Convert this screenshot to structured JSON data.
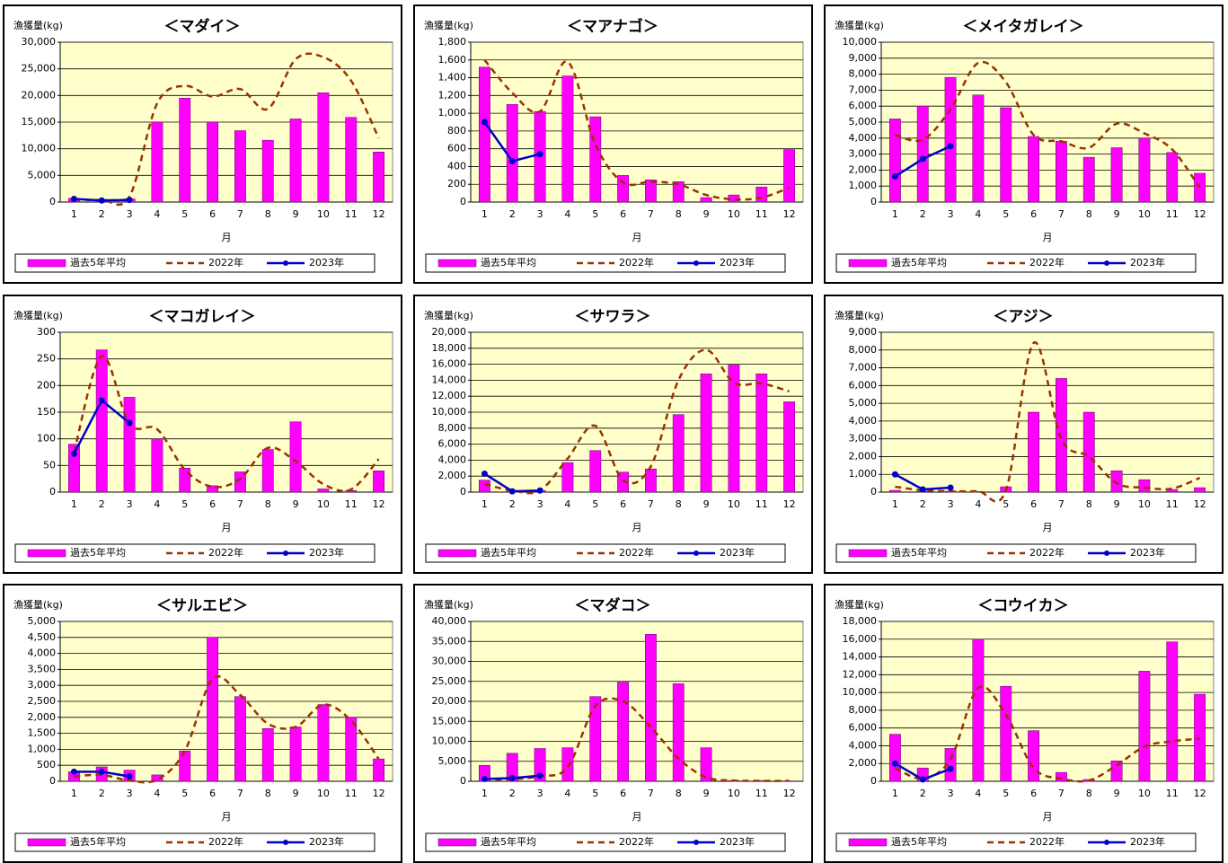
{
  "chart_data": [
    {
      "type": "bar",
      "title": "＜マダイ＞",
      "ylabel": "漁獲量(kg)",
      "xlabel": "月",
      "categories": [
        "1",
        "2",
        "3",
        "4",
        "5",
        "6",
        "7",
        "8",
        "9",
        "10",
        "11",
        "12"
      ],
      "series": [
        {
          "name": "過去5年平均",
          "type": "bar",
          "color": "#ff00ff",
          "values": [
            700,
            500,
            600,
            15000,
            19500,
            15000,
            13400,
            11600,
            15600,
            20500,
            15900,
            9400
          ]
        },
        {
          "name": "2022年",
          "type": "line",
          "linestyle": "dashed",
          "color": "#993300",
          "values": [
            500,
            400,
            1000,
            18500,
            21800,
            19800,
            21200,
            17500,
            26800,
            27200,
            22800,
            12000
          ]
        },
        {
          "name": "2023年",
          "type": "line",
          "linestyle": "solid",
          "marker": "circle",
          "color": "#0000cc",
          "values": [
            600,
            300,
            400,
            null,
            null,
            null,
            null,
            null,
            null,
            null,
            null,
            null
          ]
        }
      ],
      "ylim": [
        0,
        30000
      ],
      "yticks": [
        0,
        {
          "value": 5000,
          "label": "5,000"
        },
        {
          "value": 10000,
          "label": "10,000"
        },
        {
          "value": 15000,
          "label": "15,000"
        },
        {
          "value": 20000,
          "label": "20,000"
        },
        {
          "value": 25000,
          "label": "25,000"
        },
        {
          "value": 30000,
          "label": "30,000"
        }
      ],
      "grid": true
    },
    {
      "type": "bar",
      "title": "＜マアナゴ＞",
      "ylabel": "漁獲量(kg)",
      "xlabel": "月",
      "categories": [
        "1",
        "2",
        "3",
        "4",
        "5",
        "6",
        "7",
        "8",
        "9",
        "10",
        "11",
        "12"
      ],
      "series": [
        {
          "name": "過去5年平均",
          "type": "bar",
          "color": "#ff00ff",
          "values": [
            1520,
            1100,
            1020,
            1420,
            960,
            300,
            250,
            230,
            50,
            80,
            170,
            590
          ]
        },
        {
          "name": "2022年",
          "type": "line",
          "linestyle": "dashed",
          "color": "#993300",
          "values": [
            1600,
            1230,
            1020,
            1580,
            650,
            220,
            230,
            200,
            80,
            30,
            50,
            160
          ]
        },
        {
          "name": "2023年",
          "type": "line",
          "linestyle": "solid",
          "marker": "circle",
          "color": "#0000cc",
          "values": [
            900,
            460,
            540,
            null,
            null,
            null,
            null,
            null,
            null,
            null,
            null,
            null
          ]
        }
      ],
      "ylim": [
        0,
        1800
      ],
      "yticks": [
        0,
        200,
        400,
        600,
        800,
        {
          "value": 1000,
          "label": "1,000"
        },
        {
          "value": 1200,
          "label": "1,200"
        },
        {
          "value": 1400,
          "label": "1,400"
        },
        {
          "value": 1600,
          "label": "1,600"
        },
        {
          "value": 1800,
          "label": "1,800"
        }
      ],
      "grid": true
    },
    {
      "type": "bar",
      "title": "＜メイタガレイ＞",
      "ylabel": "漁獲量(kg)",
      "xlabel": "月",
      "categories": [
        "1",
        "2",
        "3",
        "4",
        "5",
        "6",
        "7",
        "8",
        "9",
        "10",
        "11",
        "12"
      ],
      "series": [
        {
          "name": "過去5年平均",
          "type": "bar",
          "color": "#ff00ff",
          "values": [
            5200,
            6000,
            7800,
            6700,
            5900,
            4100,
            3800,
            2800,
            3400,
            4000,
            3100,
            1800
          ]
        },
        {
          "name": "2022年",
          "type": "line",
          "linestyle": "dashed",
          "color": "#993300",
          "values": [
            4200,
            3900,
            5800,
            8700,
            7500,
            4200,
            3800,
            3400,
            4900,
            4300,
            3300,
            900
          ]
        },
        {
          "name": "2023年",
          "type": "line",
          "linestyle": "solid",
          "marker": "circle",
          "color": "#0000cc",
          "values": [
            1600,
            2700,
            3500,
            null,
            null,
            null,
            null,
            null,
            null,
            null,
            null,
            null
          ]
        }
      ],
      "ylim": [
        0,
        10000
      ],
      "yticks": [
        0,
        {
          "value": 1000,
          "label": "1,000"
        },
        {
          "value": 2000,
          "label": "2,000"
        },
        {
          "value": 3000,
          "label": "3,000"
        },
        {
          "value": 4000,
          "label": "4,000"
        },
        {
          "value": 5000,
          "label": "5,000"
        },
        {
          "value": 6000,
          "label": "6,000"
        },
        {
          "value": 7000,
          "label": "7,000"
        },
        {
          "value": 8000,
          "label": "8,000"
        },
        {
          "value": 9000,
          "label": "9,000"
        },
        {
          "value": 10000,
          "label": "10,000"
        }
      ],
      "grid": true
    },
    {
      "type": "bar",
      "title": "＜マコガレイ＞",
      "ylabel": "漁獲量(kg)",
      "xlabel": "月",
      "categories": [
        "1",
        "2",
        "3",
        "4",
        "5",
        "6",
        "7",
        "8",
        "9",
        "10",
        "11",
        "12"
      ],
      "series": [
        {
          "name": "過去5年平均",
          "type": "bar",
          "color": "#ff00ff",
          "values": [
            90,
            267,
            178,
            100,
            45,
            12,
            38,
            80,
            132,
            6,
            3,
            40
          ]
        },
        {
          "name": "2022年",
          "type": "line",
          "linestyle": "dashed",
          "color": "#993300",
          "values": [
            75,
            255,
            128,
            118,
            42,
            10,
            25,
            83,
            58,
            15,
            5,
            62
          ]
        },
        {
          "name": "2023年",
          "type": "line",
          "linestyle": "solid",
          "marker": "circle",
          "color": "#0000cc",
          "values": [
            72,
            172,
            130,
            null,
            null,
            null,
            null,
            null,
            null,
            null,
            null,
            null
          ]
        }
      ],
      "ylim": [
        0,
        300
      ],
      "yticks": [
        0,
        50,
        100,
        150,
        200,
        250,
        300
      ],
      "grid": true
    },
    {
      "type": "bar",
      "title": "＜サワラ＞",
      "ylabel": "漁獲量(kg)",
      "xlabel": "月",
      "categories": [
        "1",
        "2",
        "3",
        "4",
        "5",
        "6",
        "7",
        "8",
        "9",
        "10",
        "11",
        "12"
      ],
      "series": [
        {
          "name": "過去5年平均",
          "type": "bar",
          "color": "#ff00ff",
          "values": [
            1500,
            200,
            200,
            3700,
            5200,
            2500,
            2900,
            9700,
            14800,
            15900,
            14800,
            11300
          ]
        },
        {
          "name": "2022年",
          "type": "line",
          "linestyle": "dashed",
          "color": "#993300",
          "values": [
            1000,
            200,
            200,
            4200,
            8300,
            1500,
            3200,
            14000,
            17800,
            13700,
            13600,
            12600
          ]
        },
        {
          "name": "2023年",
          "type": "line",
          "linestyle": "solid",
          "marker": "circle",
          "color": "#0000cc",
          "values": [
            2300,
            100,
            200,
            null,
            null,
            null,
            null,
            null,
            null,
            null,
            null,
            null
          ]
        }
      ],
      "ylim": [
        0,
        20000
      ],
      "yticks": [
        0,
        {
          "value": 2000,
          "label": "2,000"
        },
        {
          "value": 4000,
          "label": "4,000"
        },
        {
          "value": 6000,
          "label": "6,000"
        },
        {
          "value": 8000,
          "label": "8,000"
        },
        {
          "value": 10000,
          "label": "10,000"
        },
        {
          "value": 12000,
          "label": "12,000"
        },
        {
          "value": 14000,
          "label": "14,000"
        },
        {
          "value": 16000,
          "label": "16,000"
        },
        {
          "value": 18000,
          "label": "18,000"
        },
        {
          "value": 20000,
          "label": "20,000"
        }
      ],
      "grid": true
    },
    {
      "type": "bar",
      "title": "＜アジ＞",
      "ylabel": "漁獲量(kg)",
      "xlabel": "月",
      "categories": [
        "1",
        "2",
        "3",
        "4",
        "5",
        "6",
        "7",
        "8",
        "9",
        "10",
        "11",
        "12"
      ],
      "series": [
        {
          "name": "過去5年平均",
          "type": "bar",
          "color": "#ff00ff",
          "values": [
            100,
            50,
            50,
            30,
            300,
            4500,
            6400,
            4500,
            1200,
            700,
            150,
            250
          ]
        },
        {
          "name": "2022年",
          "type": "line",
          "linestyle": "dashed",
          "color": "#993300",
          "values": [
            300,
            100,
            50,
            50,
            100,
            8400,
            3000,
            2000,
            500,
            250,
            200,
            800
          ]
        },
        {
          "name": "2023年",
          "type": "line",
          "linestyle": "solid",
          "marker": "circle",
          "color": "#0000cc",
          "values": [
            1000,
            150,
            250,
            null,
            null,
            null,
            null,
            null,
            null,
            null,
            null,
            null
          ]
        }
      ],
      "ylim": [
        0,
        9000
      ],
      "yticks": [
        0,
        {
          "value": 1000,
          "label": "1,000"
        },
        {
          "value": 2000,
          "label": "2,000"
        },
        {
          "value": 3000,
          "label": "3,000"
        },
        {
          "value": 4000,
          "label": "4,000"
        },
        {
          "value": 5000,
          "label": "5,000"
        },
        {
          "value": 6000,
          "label": "6,000"
        },
        {
          "value": 7000,
          "label": "7,000"
        },
        {
          "value": 8000,
          "label": "8,000"
        },
        {
          "value": 9000,
          "label": "9,000"
        }
      ],
      "grid": true
    },
    {
      "type": "bar",
      "title": "＜サルエビ＞",
      "ylabel": "漁獲量(kg)",
      "xlabel": "月",
      "categories": [
        "1",
        "2",
        "3",
        "4",
        "5",
        "6",
        "7",
        "8",
        "9",
        "10",
        "11",
        "12"
      ],
      "series": [
        {
          "name": "過去5年平均",
          "type": "bar",
          "color": "#ff00ff",
          "values": [
            300,
            450,
            350,
            200,
            950,
            4500,
            2650,
            1650,
            1700,
            2400,
            2000,
            700
          ]
        },
        {
          "name": "2022年",
          "type": "line",
          "linestyle": "dashed",
          "color": "#993300",
          "values": [
            150,
            200,
            20,
            50,
            950,
            3200,
            2700,
            1800,
            1700,
            2400,
            1900,
            700
          ]
        },
        {
          "name": "2023年",
          "type": "line",
          "linestyle": "solid",
          "marker": "circle",
          "color": "#0000cc",
          "values": [
            300,
            300,
            150,
            null,
            null,
            null,
            null,
            null,
            null,
            null,
            null,
            null
          ]
        }
      ],
      "ylim": [
        0,
        5000
      ],
      "yticks": [
        0,
        500,
        {
          "value": 1000,
          "label": "1,000"
        },
        {
          "value": 1500,
          "label": "1,500"
        },
        {
          "value": 2000,
          "label": "2,000"
        },
        {
          "value": 2500,
          "label": "2,500"
        },
        {
          "value": 3000,
          "label": "3,000"
        },
        {
          "value": 3500,
          "label": "3,500"
        },
        {
          "value": 4000,
          "label": "4,000"
        },
        {
          "value": 4500,
          "label": "4,500"
        },
        {
          "value": 5000,
          "label": "5,000"
        }
      ],
      "grid": true
    },
    {
      "type": "bar",
      "title": "＜マダコ＞",
      "ylabel": "漁獲量(kg)",
      "xlabel": "月",
      "categories": [
        "1",
        "2",
        "3",
        "4",
        "5",
        "6",
        "7",
        "8",
        "9",
        "10",
        "11",
        "12"
      ],
      "series": [
        {
          "name": "過去5年平均",
          "type": "bar",
          "color": "#ff00ff",
          "values": [
            4000,
            7000,
            8200,
            8400,
            21200,
            24800,
            36800,
            24400,
            8400,
            200,
            200,
            100
          ]
        },
        {
          "name": "2022年",
          "type": "line",
          "linestyle": "dashed",
          "color": "#993300",
          "values": [
            500,
            500,
            1300,
            3500,
            18800,
            20000,
            13600,
            5700,
            1000,
            200,
            100,
            100
          ]
        },
        {
          "name": "2023年",
          "type": "line",
          "linestyle": "solid",
          "marker": "circle",
          "color": "#0000cc",
          "values": [
            600,
            800,
            1400,
            null,
            null,
            null,
            null,
            null,
            null,
            null,
            null,
            null
          ]
        }
      ],
      "ylim": [
        0,
        40000
      ],
      "yticks": [
        0,
        {
          "value": 5000,
          "label": "5,000"
        },
        {
          "value": 10000,
          "label": "10,000"
        },
        {
          "value": 15000,
          "label": "15,000"
        },
        {
          "value": 20000,
          "label": "20,000"
        },
        {
          "value": 25000,
          "label": "25,000"
        },
        {
          "value": 30000,
          "label": "30,000"
        },
        {
          "value": 35000,
          "label": "35,000"
        },
        {
          "value": 40000,
          "label": "40,000"
        }
      ],
      "grid": true
    },
    {
      "type": "bar",
      "title": "＜コウイカ＞",
      "ylabel": "漁獲量(kg)",
      "xlabel": "月",
      "categories": [
        "1",
        "2",
        "3",
        "4",
        "5",
        "6",
        "7",
        "8",
        "9",
        "10",
        "11",
        "12"
      ],
      "series": [
        {
          "name": "過去5年平均",
          "type": "bar",
          "color": "#ff00ff",
          "values": [
            5300,
            1500,
            3700,
            16000,
            10700,
            5700,
            1000,
            200,
            2300,
            12400,
            15700,
            9800
          ]
        },
        {
          "name": "2022年",
          "type": "line",
          "linestyle": "dashed",
          "color": "#993300",
          "values": [
            1500,
            300,
            2500,
            10500,
            7500,
            1500,
            300,
            100,
            1800,
            3900,
            4500,
            4800
          ]
        },
        {
          "name": "2023年",
          "type": "line",
          "linestyle": "solid",
          "marker": "circle",
          "color": "#0000cc",
          "values": [
            2000,
            200,
            1400,
            null,
            null,
            null,
            null,
            null,
            null,
            null,
            null,
            null
          ]
        }
      ],
      "ylim": [
        0,
        18000
      ],
      "yticks": [
        0,
        {
          "value": 2000,
          "label": "2,000"
        },
        {
          "value": 4000,
          "label": "4,000"
        },
        {
          "value": 6000,
          "label": "6,000"
        },
        {
          "value": 8000,
          "label": "8,000"
        },
        {
          "value": 10000,
          "label": "10,000"
        },
        {
          "value": 12000,
          "label": "12,000"
        },
        {
          "value": 14000,
          "label": "14,000"
        },
        {
          "value": 16000,
          "label": "16,000"
        },
        {
          "value": 18000,
          "label": "18,000"
        }
      ],
      "grid": true
    }
  ]
}
